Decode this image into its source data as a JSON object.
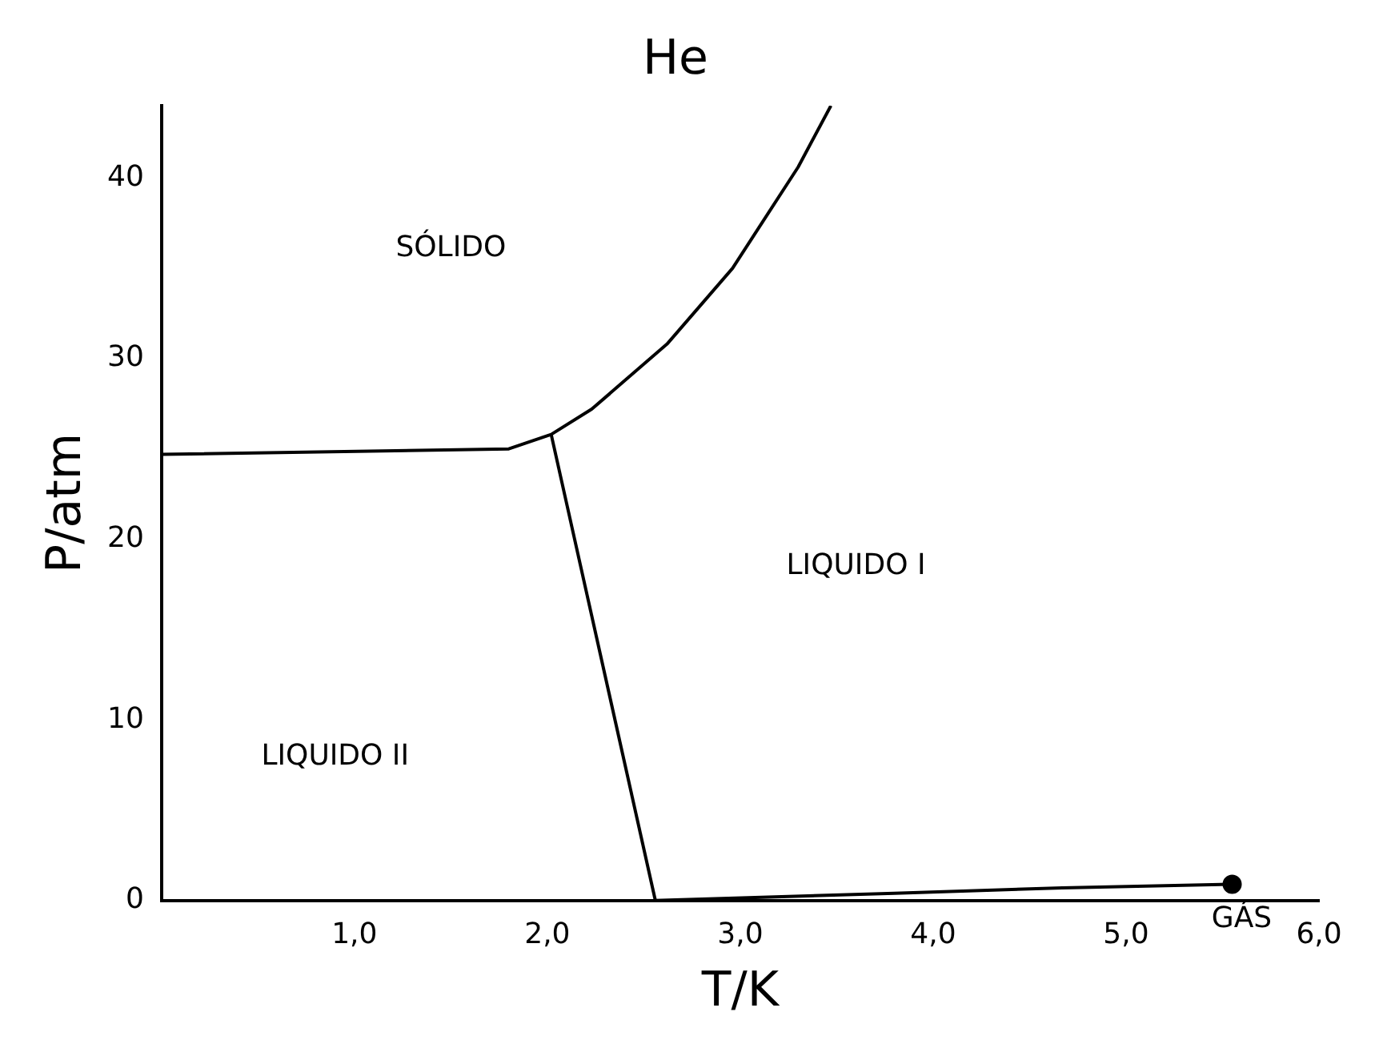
{
  "chart_data": {
    "type": "line",
    "title": "He",
    "xlabel": "T/K",
    "ylabel": "P/atm",
    "xlim": [
      0,
      6.0
    ],
    "ylim": [
      0,
      44
    ],
    "xticks": [
      {
        "value": 1,
        "label": "1,0"
      },
      {
        "value": 2,
        "label": "2,0"
      },
      {
        "value": 3,
        "label": "3,0"
      },
      {
        "value": 4,
        "label": "4,0"
      },
      {
        "value": 5,
        "label": "5,0"
      },
      {
        "value": 6,
        "label": "6,0"
      }
    ],
    "yticks": [
      0,
      10,
      20,
      30,
      40
    ],
    "grid": false,
    "legend": false,
    "marker": "none",
    "line_style": "solid",
    "series": [
      {
        "color": "#000000",
        "x": [
          0,
          1.8,
          2.02,
          2.23,
          2.62,
          2.96,
          3.3,
          3.47
        ],
        "values": [
          24.7,
          25,
          25.8,
          27.2,
          30.8,
          35,
          40.6,
          44
        ]
      },
      {
        "color": "#000000",
        "x": [
          2.02,
          2.56
        ],
        "values": [
          25.8,
          0
        ]
      },
      {
        "color": "#000000",
        "x": [
          2.56,
          3.8,
          4.67,
          5.55
        ],
        "values": [
          0,
          0.4,
          0.7,
          0.9
        ]
      },
      {
        "type": "scatter",
        "marker": "circle",
        "color": "#000000",
        "x": [
          5.55
        ],
        "values": [
          0.9
        ]
      }
    ],
    "annotations": [
      "SÓLIDO",
      "LIQUIDO I",
      "LIQUIDO II",
      {
        "text": "GÁS",
        "x": 5.55,
        "y": 0.9
      }
    ]
  }
}
